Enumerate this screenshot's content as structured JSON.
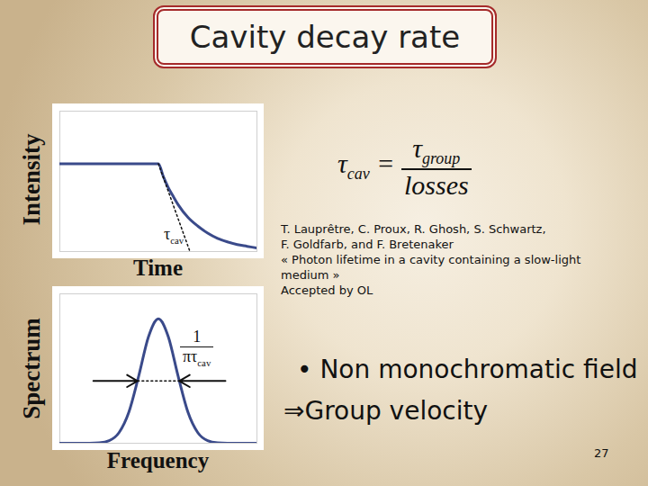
{
  "title": "Cavity decay rate",
  "formula": {
    "lhs": {
      "symbol": "τ",
      "subscript": "cav"
    },
    "equals": "=",
    "numerator": {
      "symbol": "τ",
      "subscript": "group"
    },
    "denominator": "losses"
  },
  "reference": [
    "T. Lauprêtre, C. Proux, R. Ghosh, S. Schwartz,",
    "F. Goldfarb, and F. Bretenaker",
    "« Photon lifetime in a cavity containing a slow-light",
    "medium »",
    "Accepted by OL"
  ],
  "bullets": [
    "• Non monochromatic field",
    "⇒Group velocity"
  ],
  "page_number": 27,
  "chart_data": [
    {
      "type": "line",
      "ylabel": "Intensity",
      "xlabel": "Time",
      "x": [
        0,
        1,
        2,
        3,
        4,
        5,
        5.25,
        5.5,
        5.75,
        6,
        6.5,
        7,
        7.5,
        8,
        8.5,
        9,
        9.5,
        10
      ],
      "values": [
        1,
        1,
        1,
        1,
        1,
        1,
        0.855,
        0.73,
        0.63,
        0.535,
        0.39,
        0.29,
        0.21,
        0.15,
        0.11,
        0.08,
        0.06,
        0.04
      ],
      "xlim": [
        0,
        10
      ],
      "ylim": [
        0,
        1.6
      ],
      "xticks": [],
      "yticks": [],
      "tick_labels": false,
      "color": "#3a4a8a",
      "tangent": {
        "x": [
          5,
          6.6
        ],
        "values": [
          1,
          0
        ]
      },
      "annotation": {
        "symbol": "τ",
        "subscript": "cav"
      }
    },
    {
      "type": "line",
      "ylabel": "Spectrum",
      "xlabel": "Frequency",
      "x": [
        -5,
        -4.5,
        -4,
        -3.5,
        -3,
        -2.5,
        -2,
        -1.5,
        -1,
        -0.5,
        0,
        0.5,
        1,
        1.5,
        2,
        2.5,
        3,
        3.5,
        4,
        4.5,
        5
      ],
      "values": [
        0,
        0,
        0,
        0.0005,
        0.004,
        0.021,
        0.085,
        0.249,
        0.539,
        0.857,
        1,
        0.857,
        0.539,
        0.249,
        0.085,
        0.021,
        0.004,
        0.0005,
        0,
        0,
        0
      ],
      "xlim": [
        -5,
        5
      ],
      "ylim": [
        0,
        1.2
      ],
      "xticks": [],
      "yticks": [],
      "tick_labels": false,
      "color": "#3a4a8a",
      "arrows": {
        "y": 0.5,
        "from": [
          -3.3,
          3.4
        ],
        "to": [
          -1.06,
          1.06
        ]
      },
      "annotation": {
        "numerator": "1",
        "denominator": {
          "symbol": "πτ",
          "subscript": "cav"
        }
      }
    }
  ]
}
